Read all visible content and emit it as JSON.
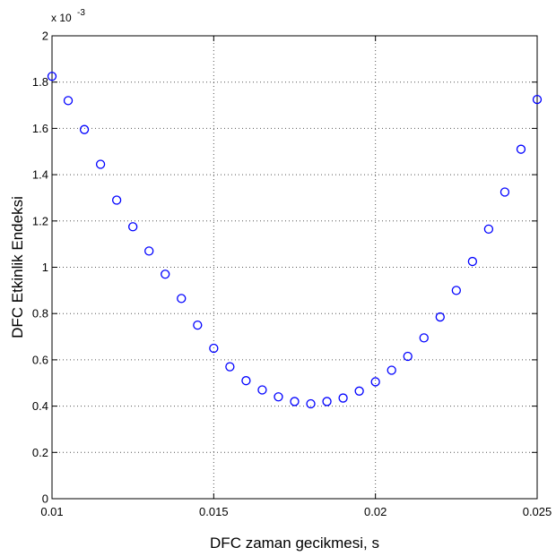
{
  "chart_data": {
    "type": "scatter",
    "title": "",
    "xlabel": "DFC zaman gecikmesi, s",
    "ylabel": "DFC Etkinlik Endeksi",
    "y_exponent_label": "x 10",
    "y_exponent_power": "-3",
    "xlim": [
      0.01,
      0.025
    ],
    "ylim": [
      0,
      2
    ],
    "grid": true,
    "x_ticks": [
      "0.01",
      "0.015",
      "0.02",
      "0.025"
    ],
    "y_ticks": [
      "0",
      "0.2",
      "0.4",
      "0.6",
      "0.8",
      "1",
      "1.2",
      "1.4",
      "1.6",
      "1.8",
      "2"
    ],
    "marker_color": "#0000ff",
    "series": [
      {
        "x": [
          0.01,
          0.0105,
          0.011,
          0.0115,
          0.012,
          0.0125,
          0.013,
          0.0135,
          0.014,
          0.0145,
          0.015,
          0.0155,
          0.016,
          0.0165,
          0.017,
          0.0175,
          0.018,
          0.0185,
          0.019,
          0.0195,
          0.02,
          0.0205,
          0.021,
          0.0215,
          0.022,
          0.0225,
          0.023,
          0.0235,
          0.024,
          0.0245,
          0.025
        ],
        "y": [
          1.825,
          1.72,
          1.595,
          1.445,
          1.29,
          1.175,
          1.07,
          0.97,
          0.865,
          0.75,
          0.65,
          0.57,
          0.51,
          0.47,
          0.44,
          0.42,
          0.41,
          0.42,
          0.435,
          0.465,
          0.505,
          0.555,
          0.615,
          0.695,
          0.785,
          0.9,
          1.025,
          1.165,
          1.325,
          1.51,
          1.725
        ]
      }
    ]
  }
}
